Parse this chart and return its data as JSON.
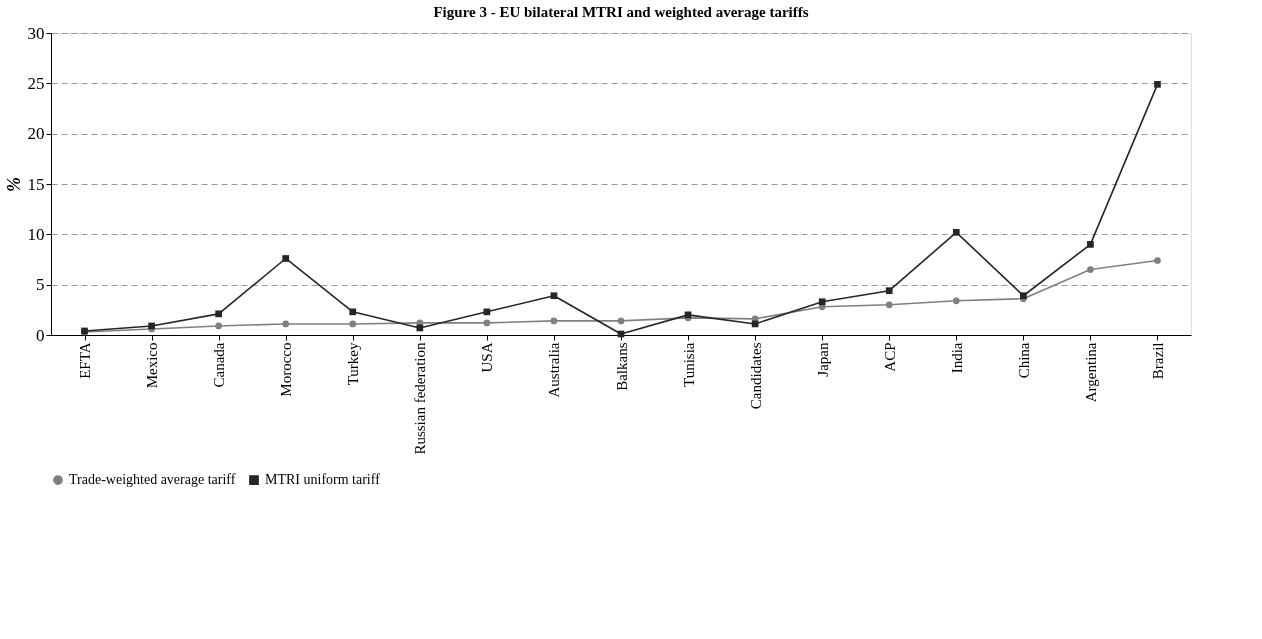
{
  "chart_data": {
    "type": "line",
    "title": "Figure 3 - EU bilateral MTRI and weighted average tariffs",
    "ylabel": "%",
    "categories": [
      "EFTA",
      "Mexico",
      "Canada",
      "Morocco",
      "Turkey",
      "Russian federation",
      "USA",
      "Australia",
      "Balkans",
      "Tunisia",
      "Candidates",
      "Japan",
      "ACP",
      "India",
      "China",
      "Argentina",
      "Brazil"
    ],
    "series": [
      {
        "name": "Trade-weighted average tariff",
        "color": "#808080",
        "marker": "circle",
        "values": [
          0.3,
          0.6,
          0.9,
          1.1,
          1.1,
          1.2,
          1.2,
          1.4,
          1.4,
          1.7,
          1.6,
          2.8,
          3.0,
          3.4,
          3.6,
          6.5,
          7.4
        ]
      },
      {
        "name": "MTRI uniform tariff",
        "color": "#262626",
        "marker": "square",
        "values": [
          0.4,
          0.9,
          2.1,
          7.6,
          2.3,
          0.7,
          2.3,
          3.9,
          0.1,
          2.0,
          1.1,
          3.3,
          4.4,
          10.2,
          3.9,
          9.0,
          24.9
        ]
      }
    ],
    "ylim": [
      0,
      30
    ],
    "yticks": [
      0,
      5,
      10,
      15,
      20,
      25,
      30
    ],
    "grid": "y",
    "legend": "bottom",
    "line_style": "solid"
  }
}
